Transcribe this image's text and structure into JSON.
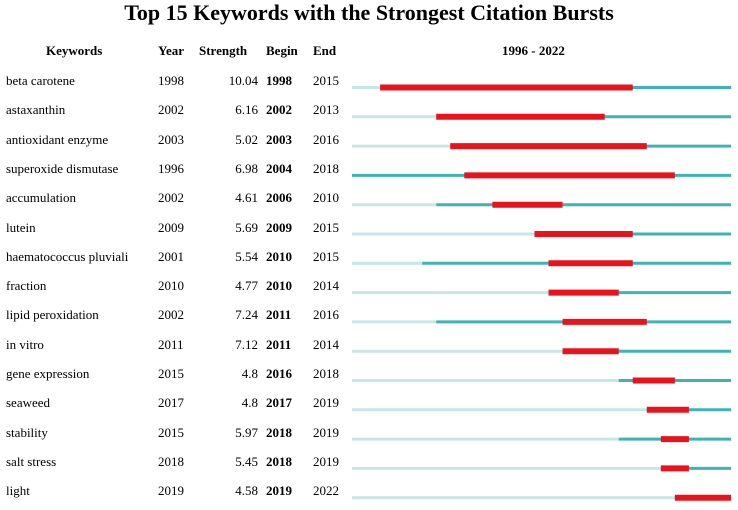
{
  "chart_data": {
    "type": "burst_timeline",
    "title": "Top 15 Keywords with the Strongest Citation Bursts",
    "columns": [
      "Keywords",
      "Year",
      "Strength",
      "Begin",
      "End",
      "1996 - 2022"
    ],
    "range": [
      1996,
      2022
    ],
    "rows": [
      {
        "keyword": "beta carotene",
        "year": "1998",
        "strength": "10.04",
        "begin": "1998",
        "end": "2015"
      },
      {
        "keyword": "astaxanthin",
        "year": "2002",
        "strength": "6.16",
        "begin": "2002",
        "end": "2013"
      },
      {
        "keyword": "antioxidant enzyme",
        "year": "2003",
        "strength": "5.02",
        "begin": "2003",
        "end": "2016"
      },
      {
        "keyword": "superoxide dismutase",
        "year": "1996",
        "strength": "6.98",
        "begin": "2004",
        "end": "2018"
      },
      {
        "keyword": "accumulation",
        "year": "2002",
        "strength": "4.61",
        "begin": "2006",
        "end": "2010"
      },
      {
        "keyword": "lutein",
        "year": "2009",
        "strength": "5.69",
        "begin": "2009",
        "end": "2015"
      },
      {
        "keyword": "haematococcus pluviali",
        "year": "2001",
        "strength": "5.54",
        "begin": "2010",
        "end": "2015"
      },
      {
        "keyword": "fraction",
        "year": "2010",
        "strength": "4.77",
        "begin": "2010",
        "end": "2014"
      },
      {
        "keyword": "lipid peroxidation",
        "year": "2002",
        "strength": "7.24",
        "begin": "2011",
        "end": "2016"
      },
      {
        "keyword": "in vitro",
        "year": "2011",
        "strength": "7.12",
        "begin": "2011",
        "end": "2014"
      },
      {
        "keyword": "gene expression",
        "year": "2015",
        "strength": "4.8",
        "begin": "2016",
        "end": "2018"
      },
      {
        "keyword": "seaweed",
        "year": "2017",
        "strength": "4.8",
        "begin": "2017",
        "end": "2019"
      },
      {
        "keyword": "stability",
        "year": "2015",
        "strength": "5.97",
        "begin": "2018",
        "end": "2019"
      },
      {
        "keyword": "salt stress",
        "year": "2018",
        "strength": "5.45",
        "begin": "2018",
        "end": "2019"
      },
      {
        "keyword": "light",
        "year": "2019",
        "strength": "4.58",
        "begin": "2019",
        "end": "2022"
      }
    ]
  },
  "colors": {
    "burst": "#e8131b",
    "active": "#3db3b9",
    "inactive": "#c6e6e8"
  }
}
